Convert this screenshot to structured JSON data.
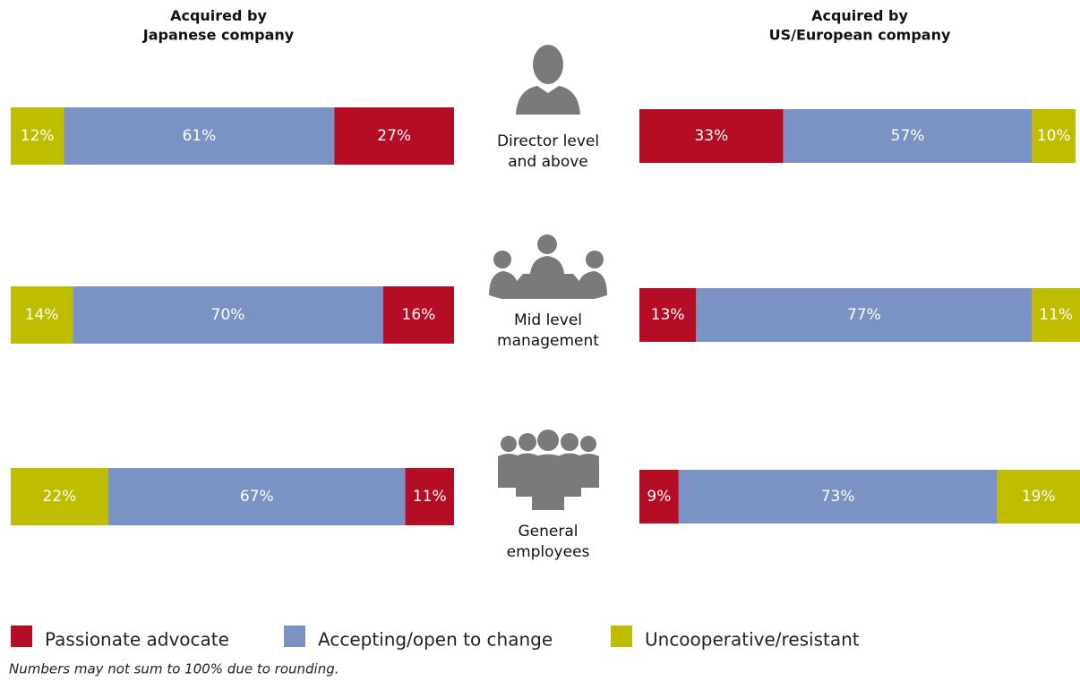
{
  "chart_data": [
    {
      "type": "bar",
      "orientation": "horizontal",
      "stacked": true,
      "title": "Acquired by\nJapanese company",
      "categories": [
        "Director level\nand above",
        "Mid level\nmanagement",
        "General\nemployees"
      ],
      "xlim": [
        0,
        100
      ],
      "series": [
        {
          "name": "Uncooperative/resistant",
          "color": "#bfbd00",
          "values": [
            12,
            14,
            22
          ],
          "value_labels": [
            "12%",
            "14%",
            "22%"
          ]
        },
        {
          "name": "Accepting/open to change",
          "color": "#7b93c4",
          "values": [
            61,
            70,
            67
          ],
          "value_labels": [
            "61%",
            "70%",
            "67%"
          ]
        },
        {
          "name": "Passionate advocate",
          "color": "#b50d26",
          "values": [
            27,
            16,
            11
          ],
          "value_labels": [
            "27%",
            "16%",
            "11%"
          ]
        }
      ],
      "note": "Numbers may not sum to 100% due to rounding."
    },
    {
      "type": "bar",
      "orientation": "horizontal",
      "stacked": true,
      "title": "Acquired by\nUS/European company",
      "xlim": [
        0,
        101
      ],
      "series": [
        {
          "color": "#b50d26",
          "values": [
            33,
            13,
            9
          ],
          "value_labels": [
            "33%",
            "13%",
            "9%"
          ]
        },
        {
          "color": "#7b93c4",
          "values": [
            57,
            77,
            73
          ],
          "value_labels": [
            "57%",
            "77%",
            "73%"
          ]
        },
        {
          "color": "#bfbd00",
          "values": [
            10,
            11,
            19
          ],
          "value_labels": [
            "10%",
            "11%",
            "19%"
          ]
        }
      ]
    }
  ]
}
